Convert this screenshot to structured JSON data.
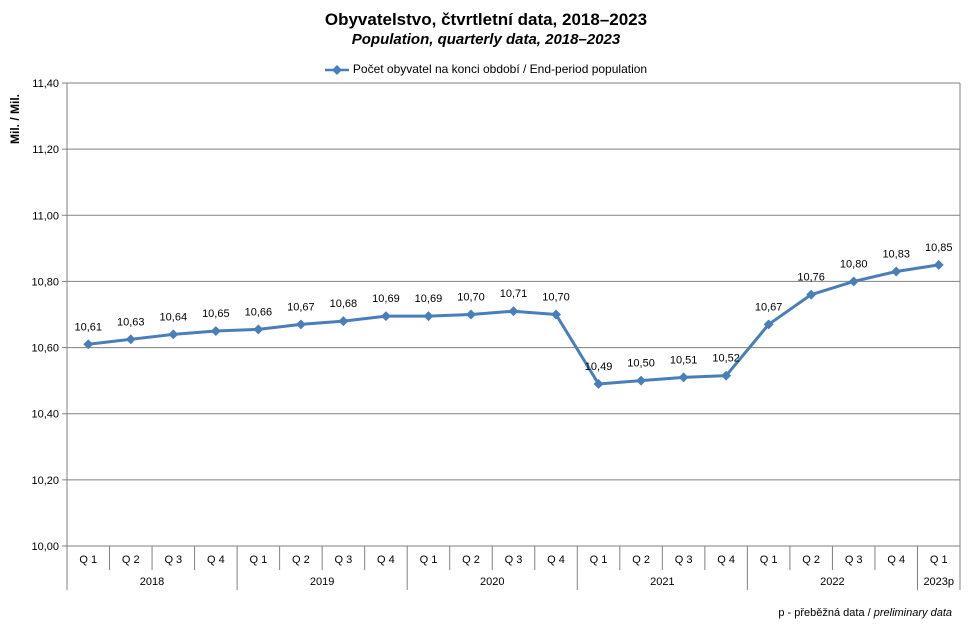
{
  "title": "Obyvatelstvo, čtvrtletní data, 2018–2023",
  "subtitle": "Population, quarterly data, 2018–2023",
  "note_text": "p - přeběžná data / ",
  "note_italic": "preliminary data",
  "colors": {
    "series": "#4a7ebb",
    "grid": "#808080"
  },
  "chart_data": {
    "type": "line",
    "title": "Obyvatelstvo, čtvrtletní data, 2018–2023",
    "subtitle": "Population, quarterly data, 2018–2023",
    "ylabel": "Mil. / Mil.",
    "ylim": [
      10.0,
      11.4
    ],
    "ytick_labels": [
      "10,00",
      "10,20",
      "10,40",
      "10,60",
      "10,80",
      "11,00",
      "11,20",
      "11,40"
    ],
    "grid": true,
    "legend_position": "top-center",
    "quarters": [
      "Q 1",
      "Q 2",
      "Q 3",
      "Q 4",
      "Q 1",
      "Q 2",
      "Q 3",
      "Q 4",
      "Q 1",
      "Q 2",
      "Q 3",
      "Q 4",
      "Q 1",
      "Q 2",
      "Q 3",
      "Q 4",
      "Q 1",
      "Q 2",
      "Q 3",
      "Q 4",
      "Q 1"
    ],
    "years": [
      {
        "label": "2018",
        "count": 4
      },
      {
        "label": "2019",
        "count": 4
      },
      {
        "label": "2020",
        "count": 4
      },
      {
        "label": "2021",
        "count": 4
      },
      {
        "label": "2022",
        "count": 4
      },
      {
        "label": "2023p",
        "count": 1
      }
    ],
    "series": [
      {
        "name": "Počet obyvatel na konci období / End-period population",
        "values": [
          10.61,
          10.625,
          10.64,
          10.65,
          10.655,
          10.67,
          10.68,
          10.695,
          10.695,
          10.7,
          10.71,
          10.7,
          10.49,
          10.5,
          10.51,
          10.515,
          10.67,
          10.76,
          10.8,
          10.83,
          10.85
        ],
        "labels": [
          "10,61",
          "10,63",
          "10,64",
          "10,65",
          "10,66",
          "10,67",
          "10,68",
          "10,69",
          "10,69",
          "10,70",
          "10,71",
          "10,70",
          "10,49",
          "10,50",
          "10,51",
          "10,52",
          "10,67",
          "10,76",
          "10,80",
          "10,83",
          "10,85"
        ]
      }
    ]
  }
}
